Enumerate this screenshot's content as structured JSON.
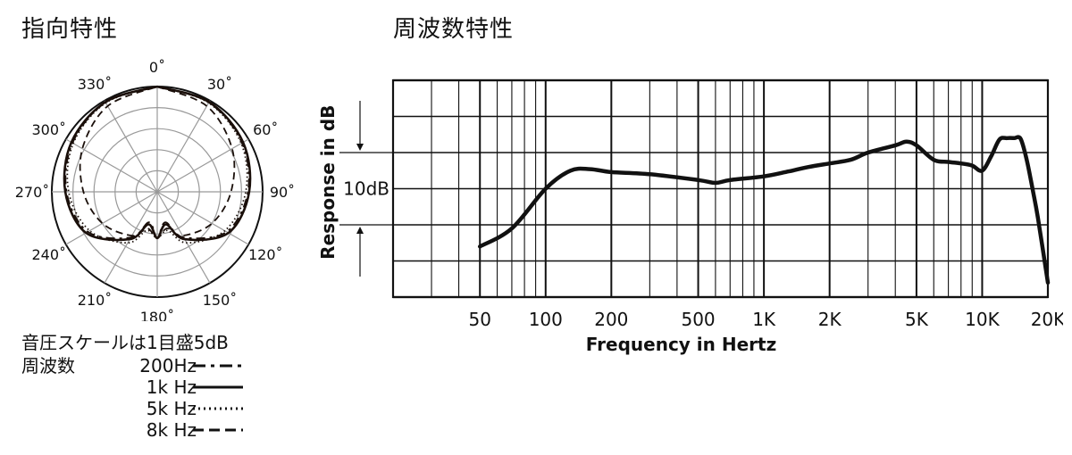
{
  "headings": {
    "polar": "指向特性",
    "frequency": "周波数特性"
  },
  "legend": {
    "scale_note": "音圧スケールは1目盛5dB",
    "title": "周波数",
    "items": [
      {
        "label": "200Hz",
        "style": "dash-dot"
      },
      {
        "label": "1k Hz",
        "style": "solid"
      },
      {
        "label": "5k Hz",
        "style": "dotted"
      },
      {
        "label": "8k Hz",
        "style": "dashed"
      }
    ]
  },
  "chart_data": [
    {
      "type": "polar",
      "angle_labels": [
        {
          "deg": 0,
          "label": "0˚"
        },
        {
          "deg": 30,
          "label": "30˚"
        },
        {
          "deg": 60,
          "label": "60˚"
        },
        {
          "deg": 90,
          "label": "90˚"
        },
        {
          "deg": 120,
          "label": "120˚"
        },
        {
          "deg": 150,
          "label": "150˚"
        },
        {
          "deg": 180,
          "label": "180˚"
        },
        {
          "deg": 210,
          "label": "210˚"
        },
        {
          "deg": 240,
          "label": "240˚"
        },
        {
          "deg": 270,
          "label": "270˚"
        },
        {
          "deg": 300,
          "label": "300˚"
        },
        {
          "deg": 330,
          "label": "330˚"
        }
      ],
      "rings": 5,
      "db_per_ring": 5,
      "series": [
        {
          "name": "1k Hz",
          "style": "solid",
          "angles": [
            0,
            30,
            60,
            90,
            120,
            150,
            165,
            180,
            195,
            210,
            240,
            270,
            300,
            330,
            360
          ],
          "db": [
            0,
            -0.4,
            -1.5,
            -3.2,
            -5.5,
            -12,
            -17,
            -14,
            -17,
            -12,
            -5.5,
            -3.2,
            -1.5,
            -0.4,
            0
          ]
        },
        {
          "name": "200Hz",
          "style": "dash-dot",
          "angles": [
            0,
            30,
            60,
            90,
            120,
            150,
            165,
            180,
            195,
            210,
            240,
            270,
            300,
            330,
            360
          ],
          "db": [
            0,
            -0.5,
            -1.8,
            -3.5,
            -6,
            -12.5,
            -17.5,
            -14,
            -17.5,
            -12.5,
            -6,
            -3.5,
            -1.8,
            -0.5,
            0
          ]
        },
        {
          "name": "5k Hz",
          "style": "dotted",
          "angles": [
            0,
            30,
            60,
            90,
            120,
            150,
            165,
            180,
            195,
            210,
            240,
            270,
            300,
            330,
            360
          ],
          "db": [
            0,
            -0.6,
            -2,
            -4,
            -6.5,
            -11,
            -15.5,
            -14,
            -15.5,
            -11,
            -6.5,
            -4,
            -2,
            -0.6,
            0
          ]
        },
        {
          "name": "8k Hz",
          "style": "dashed",
          "angles": [
            0,
            30,
            60,
            90,
            120,
            150,
            165,
            180,
            195,
            210,
            240,
            270,
            300,
            330,
            360
          ],
          "db": [
            0,
            -1.5,
            -4.5,
            -7.5,
            -10,
            -13,
            -16,
            -14,
            -16,
            -13,
            -10,
            -7.5,
            -4.5,
            -1.5,
            0
          ]
        }
      ]
    },
    {
      "type": "line",
      "xlabel": "Frequency in Hertz",
      "ylabel": "Response in dB",
      "scale_label": "10dB",
      "x_scale": "log",
      "xlim": [
        20,
        20000
      ],
      "ylim": [
        -20,
        10
      ],
      "x_ticks": [
        {
          "value": 50,
          "label": "50"
        },
        {
          "value": 100,
          "label": "100"
        },
        {
          "value": 200,
          "label": "200"
        },
        {
          "value": 500,
          "label": "500"
        },
        {
          "value": 1000,
          "label": "1K"
        },
        {
          "value": 2000,
          "label": "2K"
        },
        {
          "value": 5000,
          "label": "5K"
        },
        {
          "value": 10000,
          "label": "10K"
        },
        {
          "value": 20000,
          "label": "20K"
        }
      ],
      "series": [
        {
          "x": [
            50,
            70,
            100,
            130,
            160,
            200,
            300,
            500,
            600,
            700,
            1000,
            1300,
            1600,
            2000,
            2500,
            3000,
            4000,
            4500,
            5000,
            6000,
            7000,
            8000,
            9000,
            10000,
            11000,
            12000,
            13000,
            14000,
            15000,
            16000,
            17000,
            18000,
            20000
          ],
          "y": [
            -13,
            -10.5,
            -5,
            -2.5,
            -2.3,
            -2.7,
            -3,
            -3.8,
            -4.2,
            -3.8,
            -3.3,
            -2.6,
            -2,
            -1.5,
            -1,
            0,
            1,
            1.5,
            1,
            -1,
            -1.3,
            -1.5,
            -1.8,
            -2.5,
            -0.5,
            1.8,
            2,
            2,
            1.9,
            -1,
            -5,
            -9,
            -18
          ]
        }
      ]
    }
  ]
}
